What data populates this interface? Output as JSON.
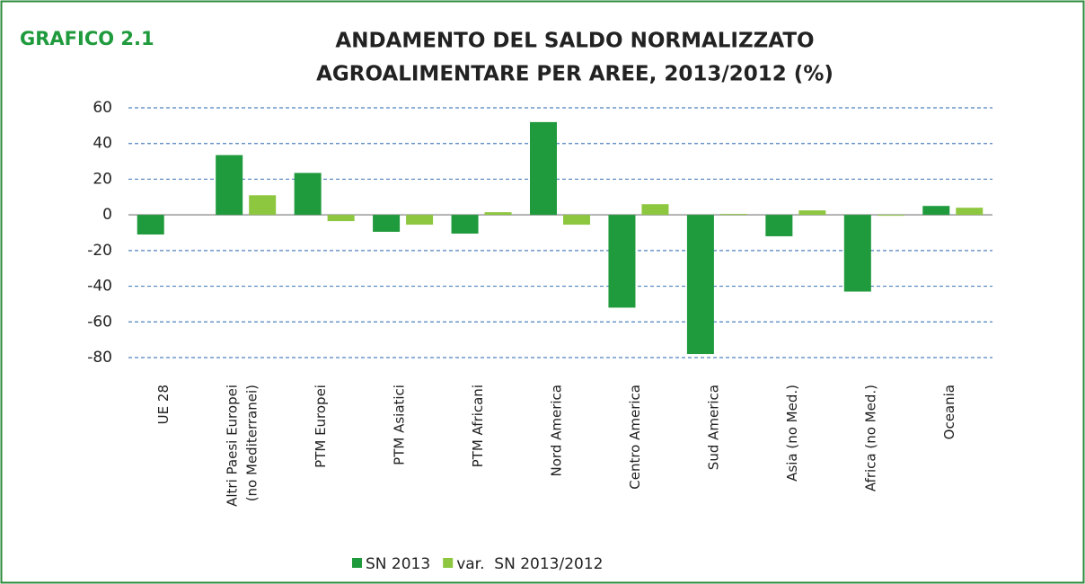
{
  "chart_data": {
    "type": "bar",
    "label": "GRAFICO 2.1",
    "title": [
      "ANDAMENTO DEL SALDO NORMALIZZATO",
      "AGROALIMENTARE PER AREE, 2013/2012 (%)"
    ],
    "categories": [
      "UE 28",
      [
        "Altri Paesi Europei",
        "(no Mediterranei)"
      ],
      "PTM Europei",
      "PTM Asiatici",
      "PTM Africani",
      "Nord America",
      "Centro America",
      "Sud America",
      "Asia (no Med.)",
      "Africa (no Med.)",
      "Oceania"
    ],
    "series": [
      {
        "name": "SN 2013",
        "color": "#1f9a3c",
        "values": [
          -11,
          33.5,
          23.5,
          -9.5,
          -10.5,
          52,
          -52,
          -78,
          -12,
          -43,
          5
        ]
      },
      {
        "name": "var.  SN 2013/2012",
        "color": "#8dc63f",
        "values": [
          0,
          11,
          -3.5,
          -5.5,
          1.5,
          -5.5,
          6,
          0.5,
          2.5,
          -0.5,
          4
        ]
      }
    ],
    "ylim": [
      -80,
      60
    ],
    "yticks": [
      -80,
      -60,
      -40,
      -20,
      0,
      20,
      40,
      60
    ],
    "grid": true,
    "legend": "bottom"
  }
}
